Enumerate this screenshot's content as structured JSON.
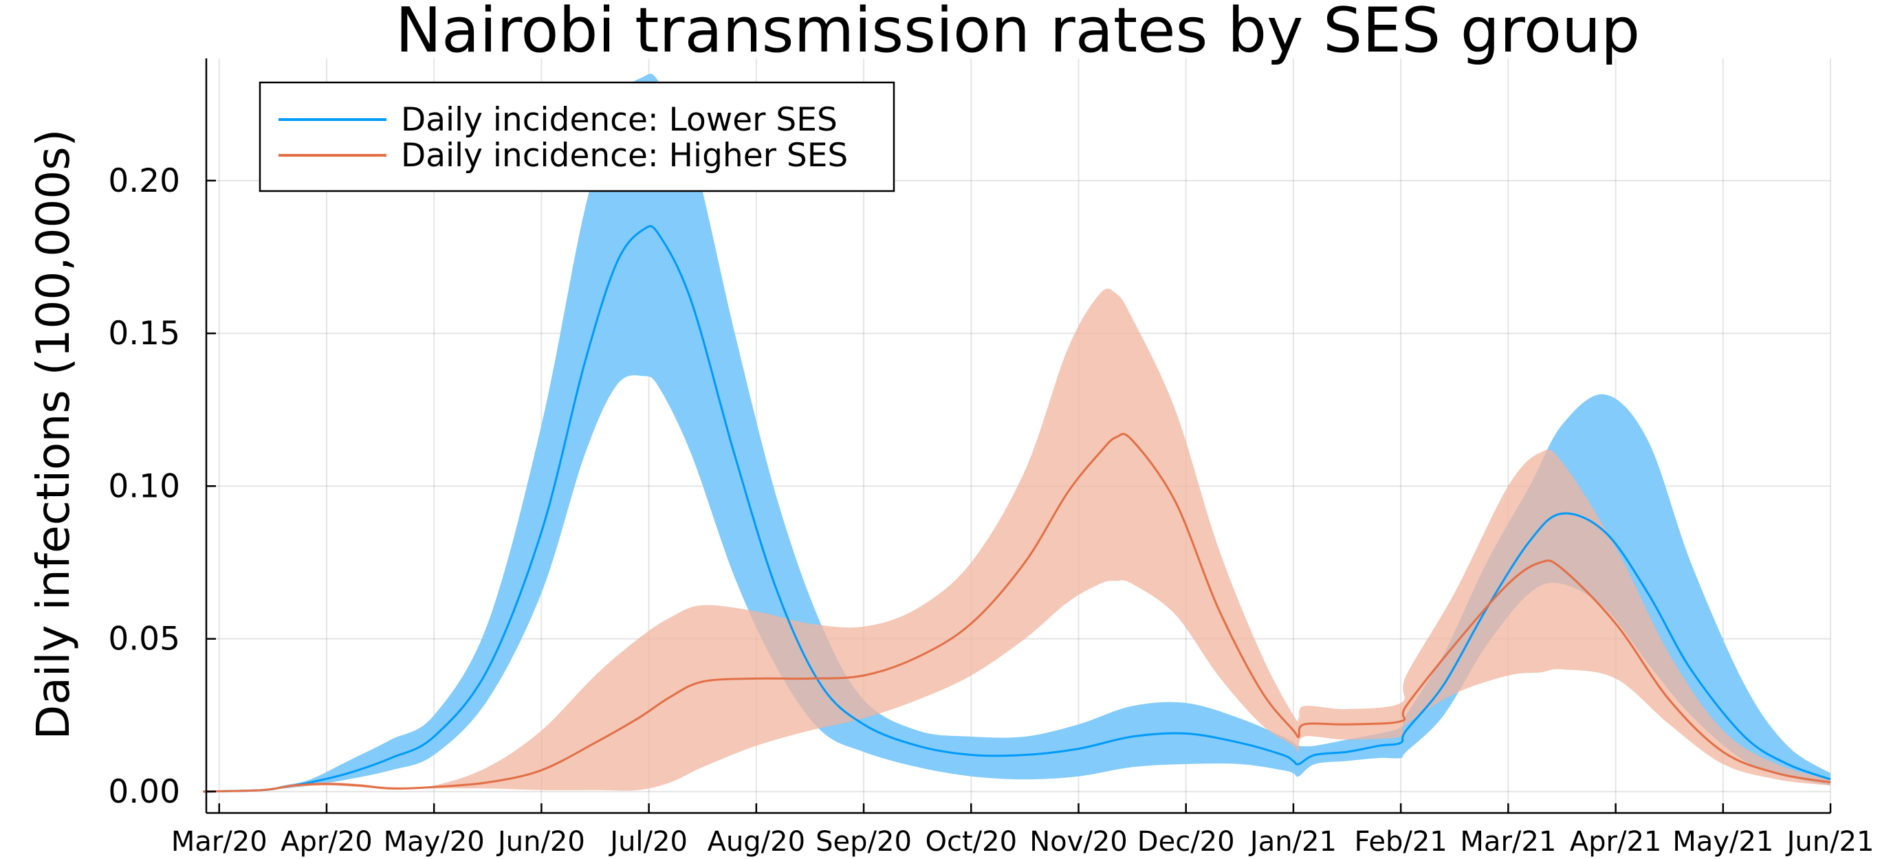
{
  "chart_data": {
    "type": "line",
    "title": "Nairobi transmission rates by SES group",
    "xlabel": "",
    "ylabel": "Daily infections (100,000s)",
    "ylim": [
      -0.007,
      0.24
    ],
    "xlim_months": [
      -0.12,
      15.0
    ],
    "yticks": [
      {
        "value": 0.0,
        "label": "0.00"
      },
      {
        "value": 0.05,
        "label": "0.05"
      },
      {
        "value": 0.1,
        "label": "0.10"
      },
      {
        "value": 0.15,
        "label": "0.15"
      },
      {
        "value": 0.2,
        "label": "0.20"
      }
    ],
    "xticks": [
      {
        "value": 0,
        "label": "Mar/20"
      },
      {
        "value": 1,
        "label": "Apr/20"
      },
      {
        "value": 2,
        "label": "May/20"
      },
      {
        "value": 3,
        "label": "Jun/20"
      },
      {
        "value": 4,
        "label": "Jul/20"
      },
      {
        "value": 5,
        "label": "Aug/20"
      },
      {
        "value": 6,
        "label": "Sep/20"
      },
      {
        "value": 7,
        "label": "Oct/20"
      },
      {
        "value": 8,
        "label": "Nov/20"
      },
      {
        "value": 9,
        "label": "Dec/20"
      },
      {
        "value": 10,
        "label": "Jan/21"
      },
      {
        "value": 11,
        "label": "Feb/21"
      },
      {
        "value": 12,
        "label": "Mar/21"
      },
      {
        "value": 13,
        "label": "Apr/21"
      },
      {
        "value": 14,
        "label": "May/21"
      },
      {
        "value": 15,
        "label": "Jun/21"
      }
    ],
    "grid": true,
    "legend_position": "top-left",
    "series": [
      {
        "name": "Daily incidence: Lower SES",
        "color": "#009AFA",
        "band_color": "#82CBFA",
        "x": [
          -0.15,
          0.4,
          0.6,
          0.85,
          1.2,
          1.6,
          2.0,
          2.5,
          3.0,
          3.4,
          3.7,
          3.95,
          4.1,
          4.4,
          4.8,
          5.2,
          5.6,
          6.0,
          6.5,
          7.0,
          7.5,
          8.0,
          8.5,
          9.0,
          9.5,
          9.9,
          10.0,
          10.05,
          10.2,
          10.5,
          10.8,
          11.0,
          11.05,
          11.4,
          11.8,
          12.2,
          12.5,
          12.9,
          13.3,
          13.7,
          14.2,
          14.6,
          15.0
        ],
        "mean": [
          0.0,
          0.0005,
          0.0015,
          0.003,
          0.006,
          0.011,
          0.018,
          0.04,
          0.085,
          0.14,
          0.173,
          0.184,
          0.182,
          0.16,
          0.11,
          0.065,
          0.035,
          0.022,
          0.015,
          0.012,
          0.012,
          0.014,
          0.018,
          0.019,
          0.016,
          0.012,
          0.01,
          0.009,
          0.012,
          0.013,
          0.015,
          0.016,
          0.02,
          0.035,
          0.06,
          0.082,
          0.091,
          0.085,
          0.065,
          0.04,
          0.018,
          0.009,
          0.004
        ],
        "lower": [
          0.0,
          0.0004,
          0.001,
          0.002,
          0.004,
          0.007,
          0.012,
          0.03,
          0.065,
          0.11,
          0.133,
          0.136,
          0.132,
          0.11,
          0.07,
          0.04,
          0.02,
          0.013,
          0.008,
          0.005,
          0.004,
          0.005,
          0.008,
          0.009,
          0.009,
          0.007,
          0.006,
          0.005,
          0.009,
          0.01,
          0.011,
          0.011,
          0.013,
          0.025,
          0.048,
          0.065,
          0.068,
          0.06,
          0.042,
          0.025,
          0.01,
          0.005,
          0.002
        ],
        "upper": [
          0.0,
          0.0006,
          0.002,
          0.004,
          0.01,
          0.017,
          0.025,
          0.055,
          0.12,
          0.19,
          0.225,
          0.234,
          0.232,
          0.21,
          0.15,
          0.095,
          0.055,
          0.03,
          0.02,
          0.018,
          0.018,
          0.022,
          0.028,
          0.029,
          0.024,
          0.018,
          0.016,
          0.015,
          0.015,
          0.017,
          0.019,
          0.021,
          0.025,
          0.045,
          0.075,
          0.1,
          0.12,
          0.13,
          0.115,
          0.075,
          0.035,
          0.015,
          0.006
        ]
      },
      {
        "name": "Daily incidence: Higher SES",
        "color": "#E26F46",
        "band_color": "#F0B49E",
        "x": [
          -0.15,
          0.4,
          0.7,
          1.0,
          1.3,
          1.6,
          2.0,
          2.5,
          3.0,
          3.5,
          3.9,
          4.2,
          4.5,
          5.0,
          5.5,
          6.0,
          6.5,
          7.0,
          7.5,
          7.9,
          8.2,
          8.35,
          8.5,
          8.9,
          9.3,
          9.7,
          10.0,
          10.05,
          10.1,
          10.5,
          11.0,
          11.05,
          11.5,
          12.0,
          12.3,
          12.5,
          13.0,
          13.5,
          14.0,
          14.5,
          15.0
        ],
        "mean": [
          0.0,
          0.0005,
          0.002,
          0.0025,
          0.002,
          0.001,
          0.0015,
          0.003,
          0.007,
          0.016,
          0.024,
          0.031,
          0.036,
          0.037,
          0.037,
          0.038,
          0.044,
          0.055,
          0.075,
          0.098,
          0.111,
          0.116,
          0.115,
          0.095,
          0.06,
          0.033,
          0.02,
          0.018,
          0.022,
          0.022,
          0.023,
          0.028,
          0.048,
          0.068,
          0.075,
          0.073,
          0.055,
          0.03,
          0.013,
          0.006,
          0.003
        ],
        "lower": [
          0.0,
          0.0004,
          0.0015,
          0.002,
          0.0015,
          0.0008,
          0.001,
          0.001,
          0.0005,
          0.0005,
          0.0005,
          0.003,
          0.008,
          0.015,
          0.02,
          0.024,
          0.03,
          0.038,
          0.05,
          0.062,
          0.068,
          0.069,
          0.068,
          0.058,
          0.038,
          0.022,
          0.015,
          0.013,
          0.018,
          0.017,
          0.018,
          0.022,
          0.032,
          0.038,
          0.039,
          0.04,
          0.037,
          0.022,
          0.009,
          0.004,
          0.002
        ],
        "upper": [
          0.0,
          0.0006,
          0.0025,
          0.003,
          0.0025,
          0.0015,
          0.002,
          0.008,
          0.02,
          0.038,
          0.05,
          0.057,
          0.061,
          0.059,
          0.055,
          0.054,
          0.06,
          0.075,
          0.105,
          0.145,
          0.163,
          0.163,
          0.155,
          0.125,
          0.08,
          0.045,
          0.025,
          0.024,
          0.028,
          0.027,
          0.029,
          0.038,
          0.065,
          0.1,
          0.111,
          0.108,
          0.08,
          0.045,
          0.02,
          0.009,
          0.004
        ]
      }
    ]
  }
}
